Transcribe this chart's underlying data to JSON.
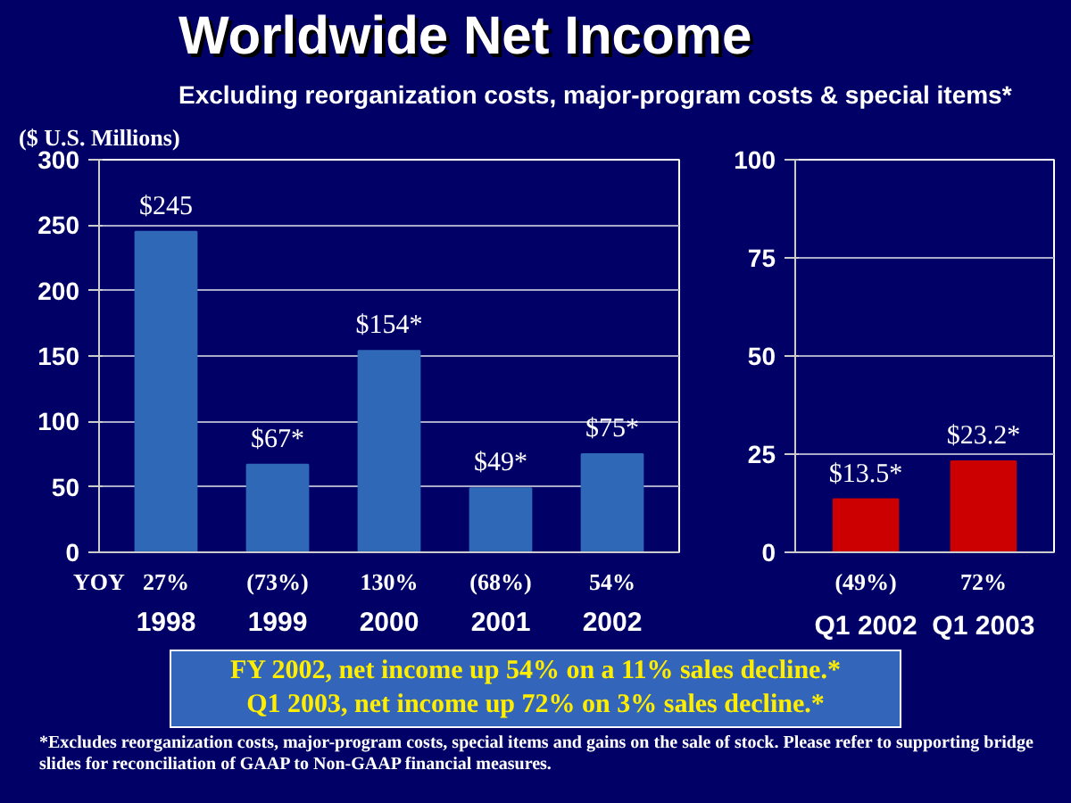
{
  "chart_data": [
    {
      "type": "bar",
      "title": "Worldwide Net Income",
      "subtitle": "Excluding reorganization costs, major-program costs & special items*",
      "ylabel": "($ U.S. Millions)",
      "categories": [
        "1998",
        "1999",
        "2000",
        "2001",
        "2002"
      ],
      "values": [
        245,
        67,
        154,
        49,
        75
      ],
      "color": "#3068b8",
      "value_labels": [
        "$245",
        "$67*",
        "$154*",
        "$49*",
        "$75*"
      ],
      "ylim": [
        0,
        300
      ],
      "yticks": [
        0,
        50,
        100,
        150,
        200,
        250,
        300
      ],
      "grid": "y",
      "annotations": [
        "27%",
        "(73%)",
        "130%",
        "(68%)",
        "54%",
        "YOY",
        "FY 2002, net income up 54% on a 11% sales decline.*",
        "Q1 2003, net income up 72% on 3% sales decline.*",
        "*Excludes reorganization costs, major-program costs, special items and gains on the sale of stock. Please refer to supporting bridge slides for reconciliation of GAAP to Non-GAAP financial measures."
      ]
    },
    {
      "type": "bar",
      "categories": [
        "Q1 2002",
        "Q1 2003"
      ],
      "values": [
        13.5,
        23.2
      ],
      "color": "#cc0000",
      "value_labels": [
        "$13.5*",
        "$23.2*"
      ],
      "ylim": [
        0,
        100
      ],
      "yticks": [
        0,
        25,
        50,
        75,
        100
      ],
      "grid": "y",
      "annotations": [
        "(49%)",
        "72%"
      ]
    }
  ]
}
